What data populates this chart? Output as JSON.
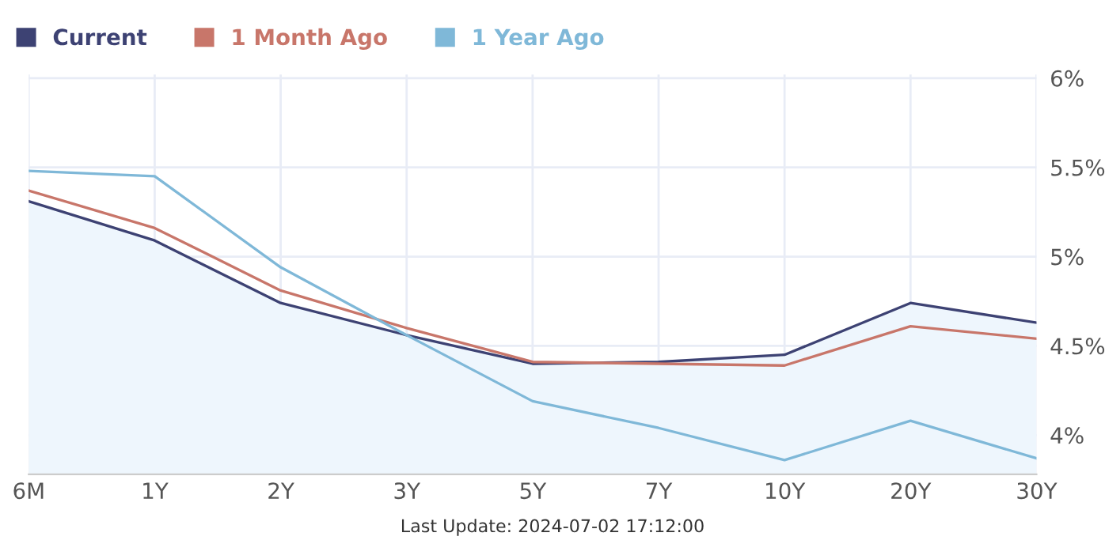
{
  "chart_data": {
    "type": "line",
    "categories": [
      "6M",
      "1Y",
      "2Y",
      "3Y",
      "5Y",
      "7Y",
      "10Y",
      "20Y",
      "30Y"
    ],
    "series": [
      {
        "name": "Current",
        "color": "#3d4273",
        "type": "area",
        "values": [
          5.31,
          5.09,
          4.74,
          4.56,
          4.4,
          4.41,
          4.45,
          4.74,
          4.63
        ]
      },
      {
        "name": "1 Month Ago",
        "color": "#c8766a",
        "values": [
          5.37,
          5.16,
          4.81,
          4.6,
          4.41,
          4.4,
          4.39,
          4.61,
          4.54
        ]
      },
      {
        "name": "1 Year Ago",
        "color": "#7fb8d8",
        "values": [
          5.48,
          5.45,
          4.94,
          4.56,
          4.19,
          4.04,
          3.86,
          4.08,
          3.87
        ]
      }
    ],
    "ylim": [
      3.78,
      6.02
    ],
    "yticks": [
      {
        "value": 4,
        "label": "4%"
      },
      {
        "value": 4.5,
        "label": "4.5%"
      },
      {
        "value": 5,
        "label": "5%"
      },
      {
        "value": 5.5,
        "label": "5.5%"
      },
      {
        "value": 6,
        "label": "6%"
      }
    ],
    "grid": true,
    "legend": "top left",
    "marker": "none",
    "annotations": [
      "Last Update: 2024-07-02 17:12:00"
    ]
  }
}
